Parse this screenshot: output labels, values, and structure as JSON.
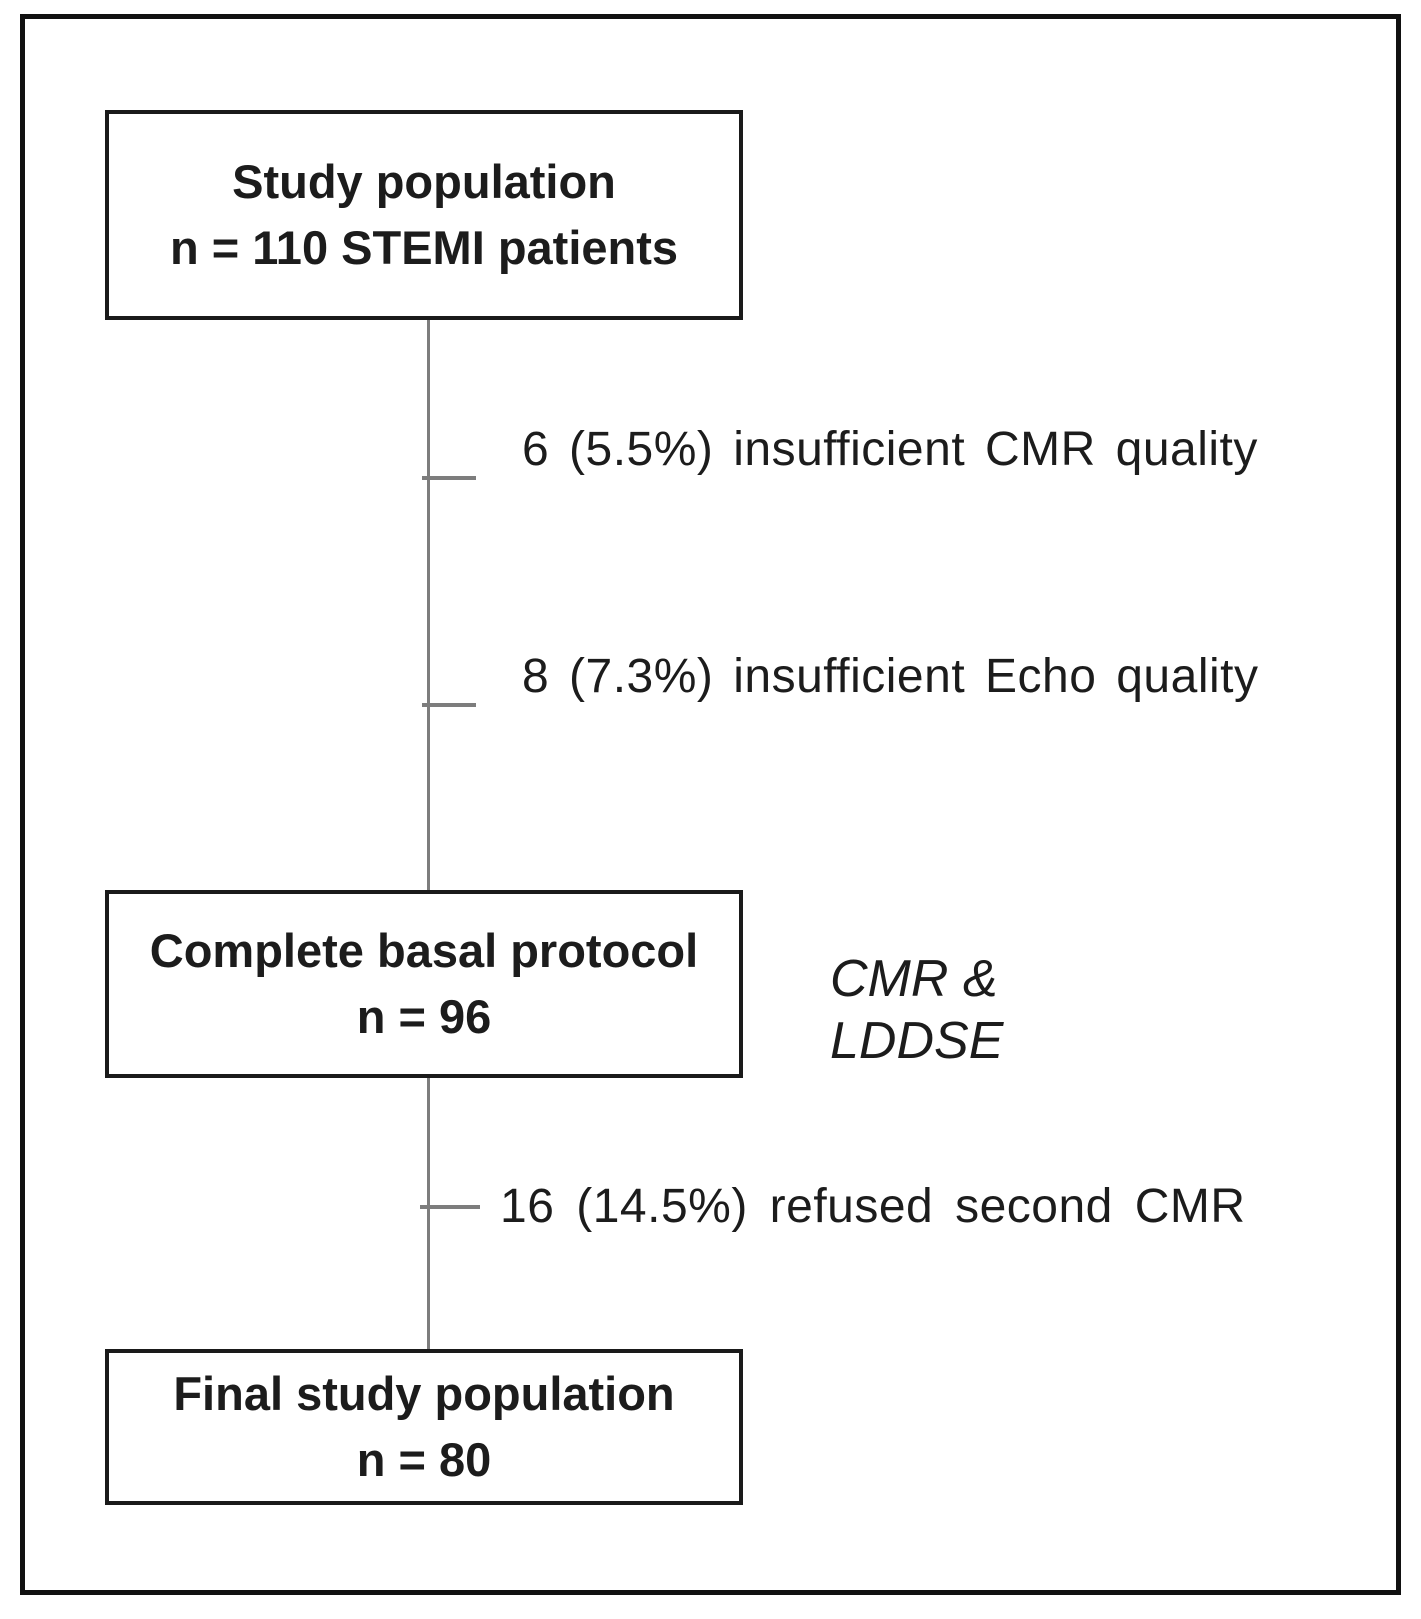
{
  "diagram": {
    "boxes": {
      "study": {
        "line1": "Study population",
        "line2": "n = 110 STEMI patients"
      },
      "basal": {
        "line1": "Complete basal protocol",
        "line2": "n = 96"
      },
      "final": {
        "line1": "Final study population",
        "line2": "n = 80"
      }
    },
    "exclusions": {
      "cmr_quality": "6 (5.5%) insufficient CMR quality",
      "echo_quality": "8 (7.3%) insufficient Echo quality",
      "refused_cmr": "16 (14.5%) refused second CMR"
    },
    "side_label": {
      "line1": "CMR &",
      "line2": "LDDSE"
    },
    "colors": {
      "border": "#1a1a1a",
      "connector": "#7d7d7d",
      "text": "#1c1c1c",
      "background": "#ffffff"
    }
  }
}
